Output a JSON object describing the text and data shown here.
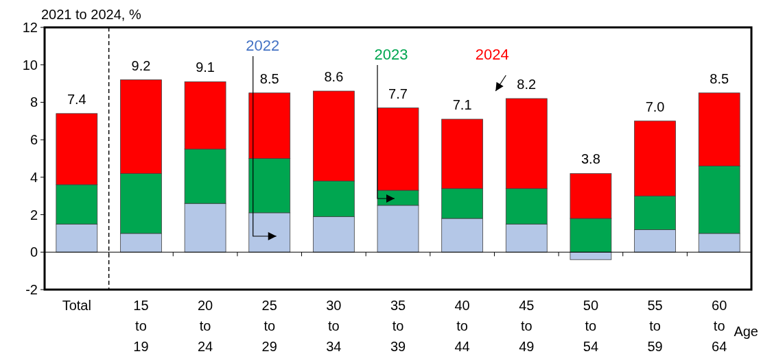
{
  "chart_data": {
    "type": "bar",
    "stacked": true,
    "ylabel": "2021 to 2024, %",
    "xlabel": "Age",
    "categories": [
      "Total",
      "15 to 19",
      "20 to 24",
      "25 to 29",
      "30 to 34",
      "35 to 39",
      "40 to 44",
      "45 to 49",
      "50 to 54",
      "55 to 59",
      "60 to 64"
    ],
    "series": [
      {
        "name": "2022",
        "color": "#b4c7e7",
        "values": [
          1.5,
          1.0,
          2.6,
          2.1,
          1.9,
          2.5,
          1.8,
          1.5,
          -0.4,
          1.2,
          1.0
        ]
      },
      {
        "name": "2023",
        "color": "#00a650",
        "values": [
          2.1,
          3.2,
          2.9,
          2.9,
          1.9,
          0.8,
          1.6,
          1.9,
          1.8,
          1.8,
          3.6
        ]
      },
      {
        "name": "2024",
        "color": "#ff0000",
        "values": [
          3.8,
          5.0,
          3.6,
          3.5,
          4.8,
          4.4,
          3.7,
          4.8,
          2.4,
          4.0,
          3.9
        ]
      }
    ],
    "totals": [
      "7.4",
      "9.2",
      "9.1",
      "8.5",
      "8.6",
      "7.7",
      "7.1",
      "8.2",
      "3.8",
      "7.0",
      "8.5"
    ],
    "ylim": [
      -2,
      12
    ],
    "yticks": [
      -2,
      0,
      2,
      4,
      6,
      8,
      10,
      12
    ]
  }
}
